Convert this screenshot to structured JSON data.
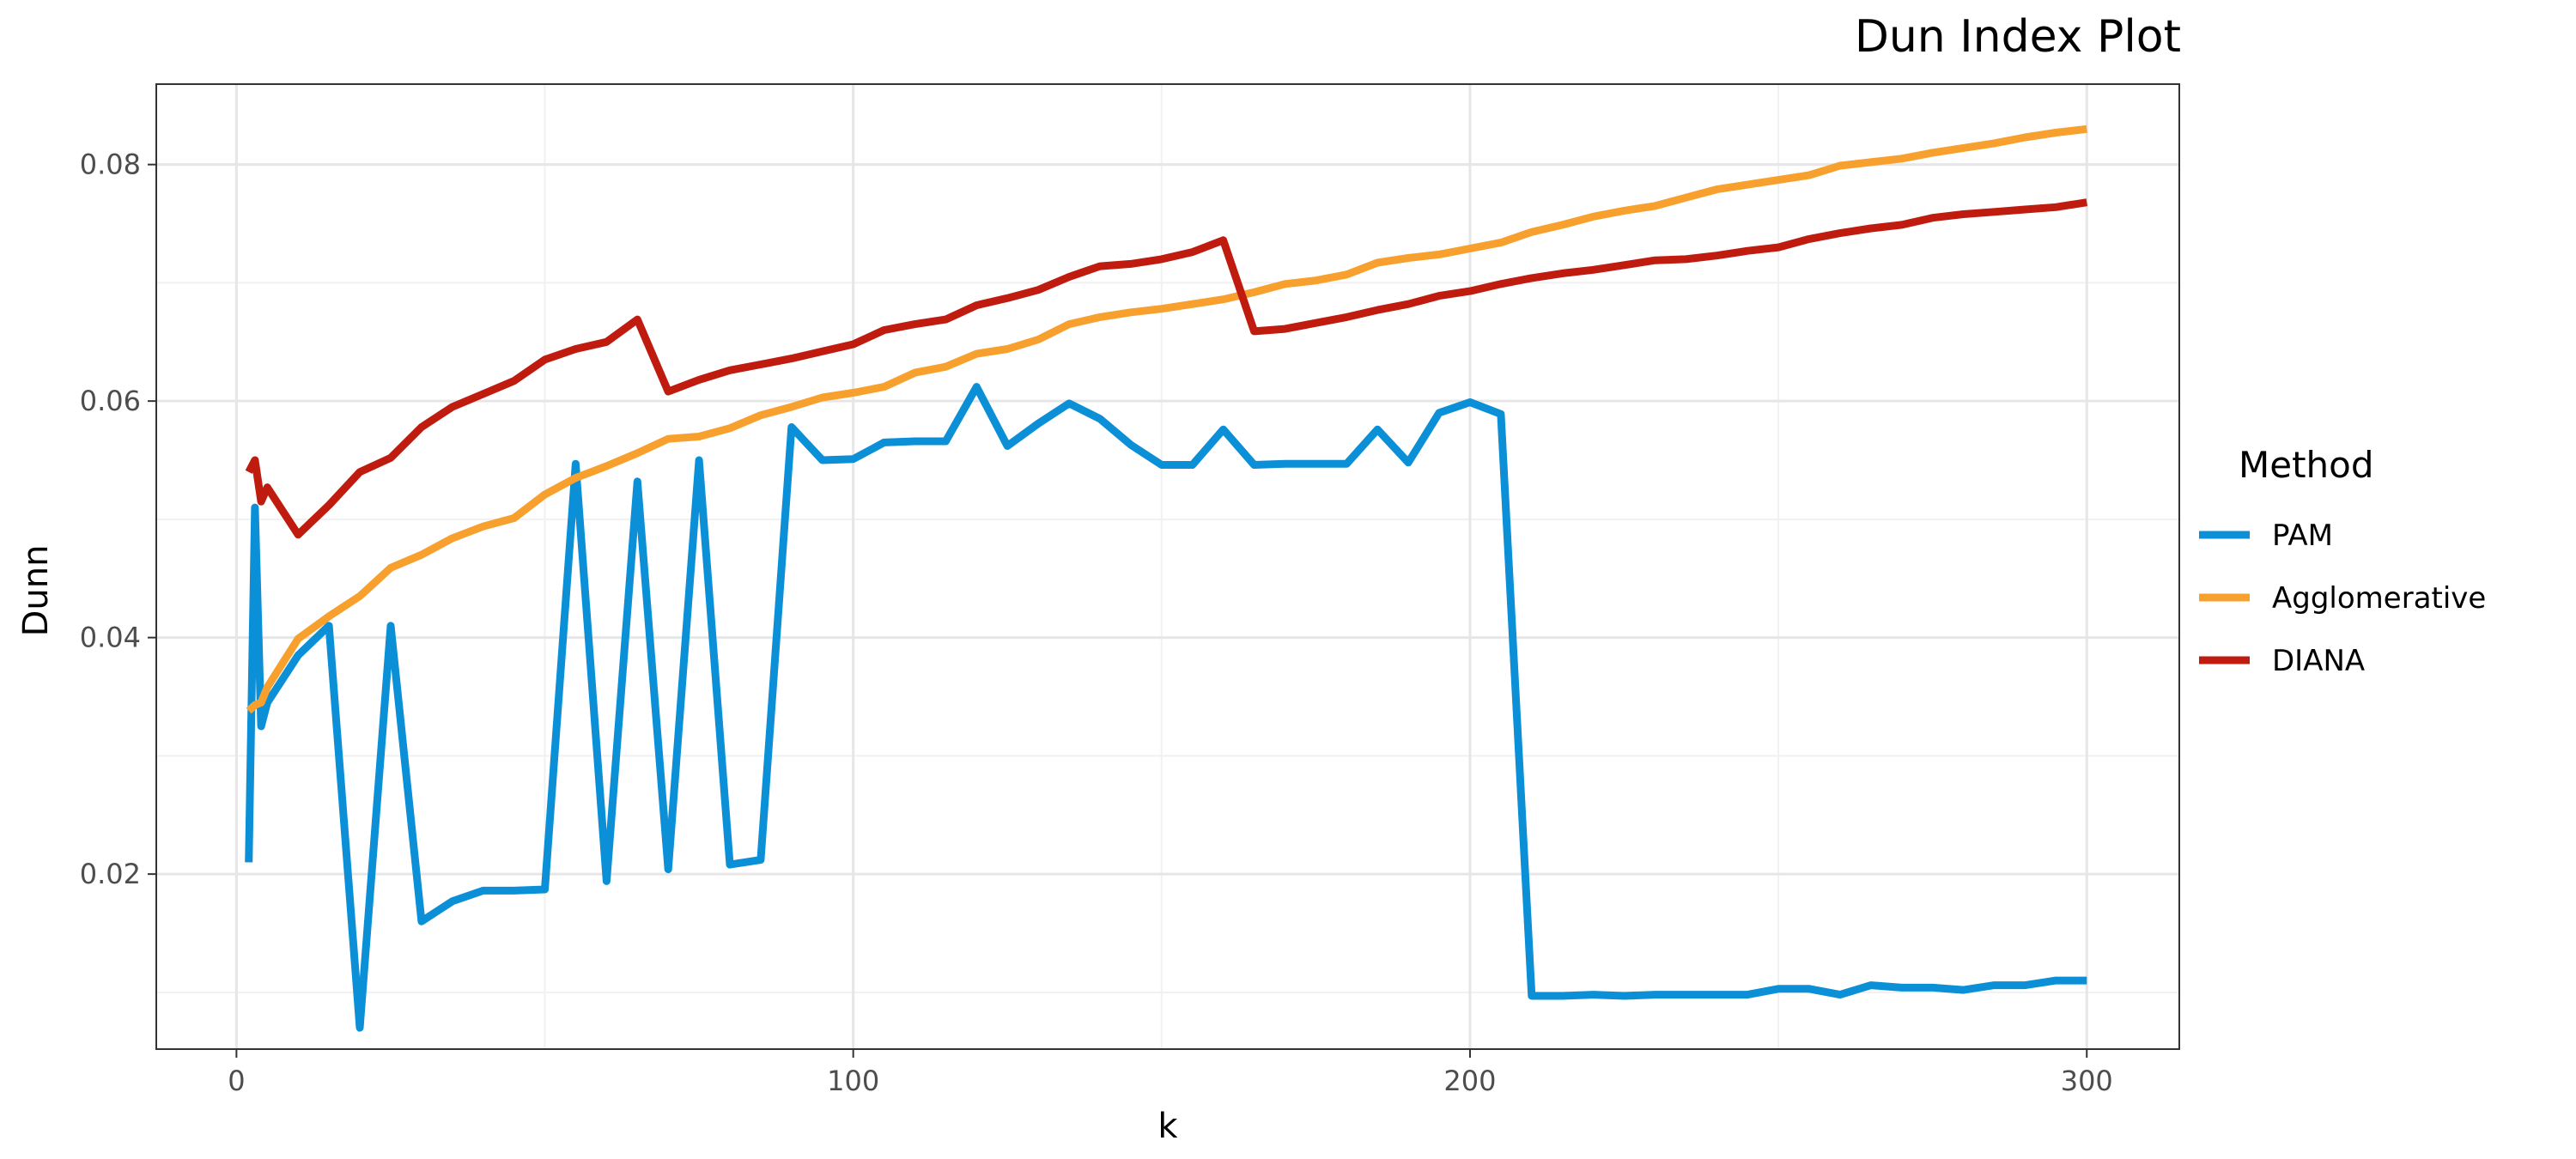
{
  "chart_data": {
    "type": "line",
    "title": "Dun Index Plot",
    "xlabel": "k",
    "ylabel": "Dunn",
    "xlim": [
      -13,
      315
    ],
    "ylim": [
      0.0052,
      0.0868
    ],
    "x_ticks": [
      0,
      100,
      200,
      300
    ],
    "x_tick_labels": [
      "0",
      "100",
      "200",
      "300"
    ],
    "y_ticks": [
      0.02,
      0.04,
      0.06,
      0.08
    ],
    "y_tick_labels": [
      "0.02",
      "0.04",
      "0.06",
      "0.08"
    ],
    "x_minor_ticks": [
      50,
      150,
      250
    ],
    "y_minor_ticks": [
      0.01,
      0.03,
      0.05,
      0.07
    ],
    "grid": true,
    "legend": {
      "title": "Method",
      "position": "right"
    },
    "series": [
      {
        "name": "PAM",
        "color": "#0b8fd7",
        "x": [
          2,
          3,
          4,
          5,
          10,
          15,
          20,
          25,
          30,
          35,
          40,
          45,
          50,
          55,
          60,
          65,
          70,
          75,
          80,
          85,
          90,
          95,
          100,
          105,
          110,
          115,
          120,
          125,
          130,
          135,
          140,
          145,
          150,
          155,
          160,
          165,
          170,
          175,
          180,
          185,
          190,
          195,
          200,
          205,
          210,
          215,
          220,
          225,
          230,
          235,
          240,
          245,
          250,
          255,
          260,
          265,
          270,
          275,
          280,
          285,
          290,
          295,
          300
        ],
        "y": [
          0.021,
          0.051,
          0.0325,
          0.0345,
          0.0385,
          0.041,
          0.007,
          0.041,
          0.016,
          0.0177,
          0.0186,
          0.0186,
          0.0187,
          0.0547,
          0.0194,
          0.0532,
          0.0204,
          0.055,
          0.0208,
          0.0212,
          0.0578,
          0.055,
          0.0551,
          0.0565,
          0.0566,
          0.0566,
          0.0612,
          0.0562,
          0.0581,
          0.0598,
          0.0585,
          0.0563,
          0.0546,
          0.0546,
          0.0576,
          0.0546,
          0.0547,
          0.0547,
          0.0547,
          0.0576,
          0.0548,
          0.059,
          0.0599,
          0.0589,
          0.0097,
          0.0097,
          0.0098,
          0.0097,
          0.0098,
          0.0098,
          0.0098,
          0.0098,
          0.0103,
          0.0103,
          0.0098,
          0.0106,
          0.0104,
          0.0104,
          0.0102,
          0.0106,
          0.0106,
          0.011,
          0.011
        ]
      },
      {
        "name": "Agglomerative",
        "color": "#f8a02e",
        "x": [
          2,
          3,
          4,
          5,
          10,
          15,
          20,
          25,
          30,
          35,
          40,
          45,
          50,
          55,
          60,
          65,
          70,
          75,
          80,
          85,
          90,
          95,
          100,
          105,
          110,
          115,
          120,
          125,
          130,
          135,
          140,
          145,
          150,
          155,
          160,
          165,
          170,
          175,
          180,
          185,
          190,
          195,
          200,
          205,
          210,
          215,
          220,
          225,
          230,
          235,
          240,
          245,
          250,
          255,
          260,
          265,
          270,
          275,
          280,
          285,
          290,
          295,
          300
        ],
        "y": [
          0.0338,
          0.0343,
          0.0345,
          0.0358,
          0.0399,
          0.0418,
          0.0435,
          0.0459,
          0.047,
          0.0484,
          0.0494,
          0.0501,
          0.0521,
          0.0535,
          0.0545,
          0.0556,
          0.0568,
          0.057,
          0.0577,
          0.0588,
          0.0595,
          0.0603,
          0.0607,
          0.0612,
          0.0624,
          0.0629,
          0.064,
          0.0644,
          0.0652,
          0.0665,
          0.0671,
          0.0675,
          0.0678,
          0.0682,
          0.0686,
          0.0692,
          0.0699,
          0.0702,
          0.0707,
          0.0717,
          0.0721,
          0.0724,
          0.0729,
          0.0734,
          0.0743,
          0.0749,
          0.0756,
          0.0761,
          0.0765,
          0.0772,
          0.0779,
          0.0783,
          0.0787,
          0.0791,
          0.0799,
          0.0802,
          0.0805,
          0.081,
          0.0814,
          0.0818,
          0.0823,
          0.0827,
          0.083
        ]
      },
      {
        "name": "DIANA",
        "color": "#bf1b0f",
        "x": [
          2,
          3,
          4,
          5,
          10,
          15,
          20,
          25,
          30,
          35,
          40,
          45,
          50,
          55,
          60,
          65,
          70,
          75,
          80,
          85,
          90,
          95,
          100,
          105,
          110,
          115,
          120,
          125,
          130,
          135,
          140,
          145,
          150,
          155,
          160,
          165,
          170,
          175,
          180,
          185,
          190,
          195,
          200,
          205,
          210,
          215,
          220,
          225,
          230,
          235,
          240,
          245,
          250,
          255,
          260,
          265,
          270,
          275,
          280,
          285,
          290,
          295,
          300
        ],
        "y": [
          0.054,
          0.055,
          0.0515,
          0.0527,
          0.0487,
          0.0512,
          0.054,
          0.0552,
          0.0578,
          0.0595,
          0.0606,
          0.0617,
          0.0635,
          0.0644,
          0.065,
          0.0669,
          0.0608,
          0.0618,
          0.0626,
          0.0631,
          0.0636,
          0.0642,
          0.0648,
          0.066,
          0.0665,
          0.0669,
          0.0681,
          0.0687,
          0.0694,
          0.0705,
          0.0714,
          0.0716,
          0.072,
          0.0726,
          0.0736,
          0.0659,
          0.0661,
          0.0666,
          0.0671,
          0.0677,
          0.0682,
          0.0689,
          0.0693,
          0.0699,
          0.0704,
          0.0708,
          0.0711,
          0.0715,
          0.0719,
          0.072,
          0.0723,
          0.0727,
          0.073,
          0.0737,
          0.0742,
          0.0746,
          0.0749,
          0.0755,
          0.0758,
          0.076,
          0.0762,
          0.0764,
          0.0768
        ]
      }
    ]
  }
}
